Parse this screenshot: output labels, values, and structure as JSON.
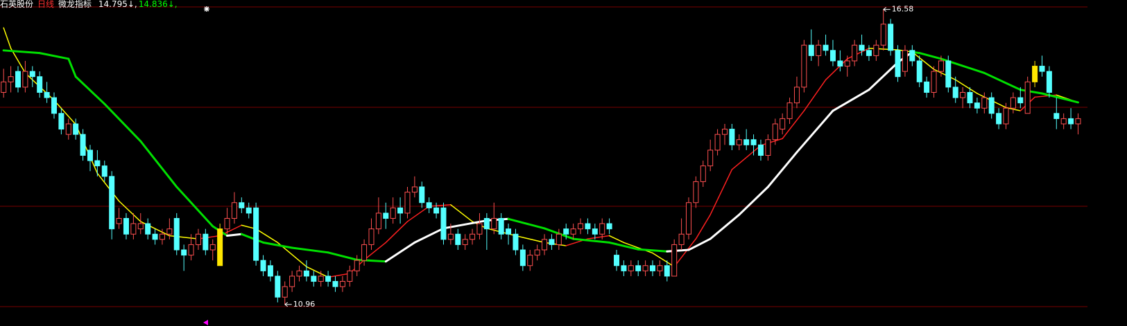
{
  "header": {
    "stock": "石英股份",
    "period": "日线",
    "indicator": "微龙指标",
    "readouts": [
      {
        "text": "14.795↓,",
        "color": "#ffffff"
      },
      {
        "text": "14.836↓,",
        "color": "#00ff00"
      }
    ]
  },
  "chart_data": {
    "type": "candlestick",
    "xlim": [
      -0.5,
      150.3
    ],
    "ylim": [
      10.55,
      16.76
    ],
    "up_color": "#ff5050",
    "down_color": "#54ffff",
    "signal_color": "#ffe600",
    "signal_candles": [
      30,
      143
    ],
    "candles": [
      [
        15.0,
        15.45,
        14.9,
        15.2
      ],
      [
        15.2,
        15.5,
        15.0,
        15.3
      ],
      [
        15.4,
        15.5,
        15.0,
        15.1
      ],
      [
        15.1,
        15.6,
        15.0,
        15.4
      ],
      [
        15.4,
        15.5,
        15.1,
        15.3
      ],
      [
        15.3,
        15.4,
        14.9,
        15.0
      ],
      [
        15.0,
        15.2,
        14.8,
        14.9
      ],
      [
        14.9,
        15.0,
        14.5,
        14.6
      ],
      [
        14.6,
        14.7,
        14.2,
        14.3
      ],
      [
        14.2,
        14.5,
        14.1,
        14.4
      ],
      [
        14.4,
        14.5,
        14.1,
        14.2
      ],
      [
        14.2,
        14.3,
        13.7,
        13.8
      ],
      [
        13.9,
        14.0,
        13.5,
        13.7
      ],
      [
        13.7,
        13.9,
        13.4,
        13.6
      ],
      [
        13.6,
        13.7,
        13.3,
        13.4
      ],
      [
        13.4,
        13.5,
        12.2,
        12.4
      ],
      [
        12.5,
        12.8,
        12.4,
        12.6
      ],
      [
        12.6,
        12.7,
        12.2,
        12.3
      ],
      [
        12.3,
        12.7,
        12.2,
        12.5
      ],
      [
        12.4,
        12.7,
        12.3,
        12.5
      ],
      [
        12.5,
        12.6,
        12.2,
        12.3
      ],
      [
        12.3,
        12.4,
        12.1,
        12.2
      ],
      [
        12.2,
        12.4,
        12.1,
        12.3
      ],
      [
        12.3,
        12.6,
        12.2,
        12.4
      ],
      [
        12.6,
        12.7,
        11.9,
        12.0
      ],
      [
        12.0,
        12.1,
        11.6,
        11.9
      ],
      [
        11.9,
        12.3,
        11.8,
        12.1
      ],
      [
        12.1,
        12.4,
        12.0,
        12.3
      ],
      [
        12.3,
        12.4,
        11.9,
        12.0
      ],
      [
        12.0,
        12.2,
        11.8,
        12.1
      ],
      [
        11.7,
        12.5,
        11.7,
        12.4
      ],
      [
        12.4,
        12.8,
        12.3,
        12.6
      ],
      [
        12.6,
        13.1,
        12.5,
        12.9
      ],
      [
        12.9,
        13.0,
        12.7,
        12.8
      ],
      [
        12.8,
        12.9,
        12.6,
        12.7
      ],
      [
        12.8,
        12.9,
        11.7,
        11.8
      ],
      [
        11.8,
        11.9,
        11.5,
        11.6
      ],
      [
        11.7,
        11.8,
        11.4,
        11.5
      ],
      [
        11.5,
        11.6,
        11.0,
        11.1
      ],
      [
        11.1,
        11.4,
        10.96,
        11.3
      ],
      [
        11.3,
        11.6,
        11.2,
        11.5
      ],
      [
        11.5,
        11.7,
        11.4,
        11.6
      ],
      [
        11.6,
        11.8,
        11.4,
        11.5
      ],
      [
        11.5,
        11.6,
        11.3,
        11.4
      ],
      [
        11.4,
        11.6,
        11.3,
        11.5
      ],
      [
        11.5,
        11.6,
        11.3,
        11.4
      ],
      [
        11.4,
        11.5,
        11.2,
        11.3
      ],
      [
        11.3,
        11.5,
        11.2,
        11.4
      ],
      [
        11.4,
        11.7,
        11.3,
        11.6
      ],
      [
        11.6,
        11.9,
        11.5,
        11.8
      ],
      [
        11.8,
        12.2,
        11.7,
        12.1
      ],
      [
        12.1,
        12.6,
        12.0,
        12.4
      ],
      [
        12.4,
        13.0,
        12.3,
        12.7
      ],
      [
        12.7,
        12.9,
        12.4,
        12.6
      ],
      [
        12.6,
        13.0,
        12.5,
        12.8
      ],
      [
        12.8,
        13.0,
        12.5,
        12.7
      ],
      [
        12.7,
        13.2,
        12.6,
        13.1
      ],
      [
        13.1,
        13.4,
        13.0,
        13.2
      ],
      [
        13.2,
        13.3,
        12.8,
        12.9
      ],
      [
        12.9,
        13.0,
        12.7,
        12.8
      ],
      [
        12.8,
        12.9,
        12.6,
        12.7
      ],
      [
        12.8,
        12.9,
        12.1,
        12.2
      ],
      [
        12.2,
        12.5,
        12.1,
        12.3
      ],
      [
        12.3,
        12.4,
        12.0,
        12.1
      ],
      [
        12.1,
        12.3,
        12.0,
        12.2
      ],
      [
        12.2,
        12.4,
        12.1,
        12.3
      ],
      [
        12.3,
        12.7,
        12.2,
        12.5
      ],
      [
        12.6,
        12.7,
        12.0,
        12.4
      ],
      [
        12.4,
        12.9,
        12.3,
        12.6
      ],
      [
        12.6,
        12.7,
        12.2,
        12.3
      ],
      [
        12.4,
        12.5,
        12.1,
        12.3
      ],
      [
        12.3,
        12.4,
        11.9,
        12.0
      ],
      [
        12.0,
        12.1,
        11.6,
        11.7
      ],
      [
        11.7,
        12.0,
        11.6,
        11.9
      ],
      [
        11.9,
        12.1,
        11.8,
        12.0
      ],
      [
        12.0,
        12.3,
        11.9,
        12.2
      ],
      [
        12.2,
        12.3,
        12.0,
        12.1
      ],
      [
        12.1,
        12.4,
        12.0,
        12.3
      ],
      [
        12.4,
        12.5,
        12.2,
        12.3
      ],
      [
        12.3,
        12.5,
        12.2,
        12.4
      ],
      [
        12.4,
        12.6,
        12.3,
        12.5
      ],
      [
        12.5,
        12.6,
        12.3,
        12.4
      ],
      [
        12.4,
        12.5,
        12.2,
        12.3
      ],
      [
        12.3,
        12.6,
        12.2,
        12.5
      ],
      [
        12.5,
        12.6,
        12.3,
        12.4
      ],
      [
        11.9,
        12.0,
        11.6,
        11.7
      ],
      [
        11.7,
        11.8,
        11.5,
        11.6
      ],
      [
        11.6,
        11.8,
        11.5,
        11.7
      ],
      [
        11.7,
        11.8,
        11.5,
        11.6
      ],
      [
        11.6,
        11.8,
        11.5,
        11.7
      ],
      [
        11.7,
        11.8,
        11.5,
        11.6
      ],
      [
        11.6,
        11.8,
        11.5,
        11.7
      ],
      [
        11.7,
        11.8,
        11.4,
        11.5
      ],
      [
        11.5,
        12.2,
        11.5,
        12.1
      ],
      [
        12.1,
        12.6,
        12.0,
        12.3
      ],
      [
        12.3,
        13.0,
        12.2,
        12.9
      ],
      [
        12.9,
        13.4,
        12.8,
        13.3
      ],
      [
        13.3,
        13.7,
        13.2,
        13.6
      ],
      [
        13.6,
        14.1,
        13.5,
        13.9
      ],
      [
        13.9,
        14.3,
        13.8,
        14.2
      ],
      [
        14.2,
        14.4,
        14.0,
        14.3
      ],
      [
        14.3,
        14.4,
        13.9,
        14.0
      ],
      [
        14.0,
        14.2,
        13.9,
        14.1
      ],
      [
        14.1,
        14.3,
        13.9,
        14.0
      ],
      [
        14.1,
        14.2,
        13.8,
        14.0
      ],
      [
        14.0,
        14.1,
        13.7,
        13.8
      ],
      [
        13.8,
        14.2,
        13.7,
        14.1
      ],
      [
        14.1,
        14.5,
        14.0,
        14.4
      ],
      [
        14.3,
        14.6,
        14.2,
        14.5
      ],
      [
        14.5,
        14.9,
        14.4,
        14.8
      ],
      [
        14.8,
        15.3,
        14.7,
        15.1
      ],
      [
        15.1,
        16.0,
        15.0,
        15.9
      ],
      [
        15.9,
        16.2,
        15.6,
        15.7
      ],
      [
        15.7,
        16.0,
        15.5,
        15.9
      ],
      [
        15.9,
        16.1,
        15.7,
        15.8
      ],
      [
        15.8,
        16.0,
        15.5,
        15.6
      ],
      [
        15.6,
        15.8,
        15.4,
        15.5
      ],
      [
        15.5,
        15.7,
        15.3,
        15.6
      ],
      [
        15.6,
        16.0,
        15.5,
        15.9
      ],
      [
        15.9,
        16.1,
        15.7,
        15.8
      ],
      [
        15.8,
        15.9,
        15.6,
        15.7
      ],
      [
        15.7,
        16.0,
        15.6,
        15.9
      ],
      [
        15.9,
        16.58,
        15.8,
        16.3
      ],
      [
        16.3,
        16.4,
        15.7,
        15.8
      ],
      [
        15.8,
        15.9,
        15.2,
        15.3
      ],
      [
        15.4,
        15.9,
        15.3,
        15.8
      ],
      [
        15.8,
        15.9,
        15.5,
        15.6
      ],
      [
        15.6,
        15.7,
        15.1,
        15.2
      ],
      [
        15.2,
        15.3,
        14.9,
        15.0
      ],
      [
        15.0,
        15.5,
        14.9,
        15.4
      ],
      [
        15.4,
        15.7,
        15.3,
        15.6
      ],
      [
        15.6,
        15.7,
        15.0,
        15.1
      ],
      [
        15.1,
        15.3,
        14.8,
        14.9
      ],
      [
        14.9,
        15.1,
        14.7,
        15.0
      ],
      [
        15.0,
        15.1,
        14.7,
        14.8
      ],
      [
        14.8,
        14.9,
        14.6,
        14.7
      ],
      [
        14.7,
        15.0,
        14.6,
        14.9
      ],
      [
        14.9,
        15.0,
        14.5,
        14.6
      ],
      [
        14.6,
        14.7,
        14.3,
        14.4
      ],
      [
        14.4,
        14.8,
        14.3,
        14.7
      ],
      [
        14.7,
        15.0,
        14.6,
        14.9
      ],
      [
        14.9,
        15.1,
        14.7,
        14.8
      ],
      [
        14.6,
        15.3,
        14.6,
        15.2
      ],
      [
        15.2,
        15.6,
        15.1,
        15.5
      ],
      [
        15.5,
        15.7,
        15.3,
        15.4
      ],
      [
        15.4,
        15.5,
        14.9,
        15.0
      ],
      [
        14.6,
        14.9,
        14.3,
        14.5
      ],
      [
        14.4,
        14.6,
        14.3,
        14.5
      ],
      [
        14.5,
        14.7,
        14.3,
        14.4
      ],
      [
        14.4,
        14.6,
        14.2,
        14.5
      ]
    ],
    "series": [
      {
        "up_color": "#ff2020",
        "down_color": "#ffff00",
        "width": 1.5,
        "x": [
          0,
          1,
          3,
          7,
          10,
          13,
          16,
          19,
          23,
          27,
          30,
          33,
          35,
          38,
          42,
          45,
          48,
          50,
          53,
          56,
          59,
          62,
          65,
          67,
          71,
          75,
          78,
          81,
          84,
          86,
          90,
          93,
          96,
          98,
          101,
          105,
          108,
          111,
          114,
          117,
          120,
          124,
          126,
          129,
          132,
          135,
          139,
          141,
          143,
          146,
          149
        ],
        "values": [
          16.23,
          15.84,
          15.37,
          14.85,
          14.39,
          13.46,
          12.93,
          12.54,
          12.27,
          12.21,
          12.27,
          12.47,
          12.4,
          12.14,
          11.68,
          11.48,
          11.55,
          11.81,
          12.14,
          12.54,
          12.83,
          12.86,
          12.54,
          12.41,
          12.27,
          12.14,
          12.08,
          12.21,
          12.27,
          12.14,
          11.94,
          11.68,
          12.21,
          12.67,
          13.53,
          13.99,
          14.12,
          14.65,
          15.24,
          15.64,
          15.84,
          15.81,
          15.77,
          15.44,
          15.24,
          14.98,
          14.71,
          14.65,
          14.91,
          14.95,
          14.81
        ]
      },
      {
        "up_color": "#ffffff",
        "down_color": "#00e000",
        "width": 3,
        "x": [
          0,
          5,
          9,
          10,
          14,
          19,
          24,
          29,
          31,
          33,
          36,
          40,
          45,
          49,
          53,
          57,
          61,
          67,
          70,
          75,
          79,
          84,
          88,
          92,
          95,
          98,
          102,
          106,
          110,
          115,
          120,
          124,
          126,
          127,
          130,
          136,
          141,
          144,
          149
        ],
        "values": [
          15.8,
          15.75,
          15.64,
          15.3,
          14.78,
          14.07,
          13.2,
          12.45,
          12.27,
          12.3,
          12.14,
          12.04,
          11.95,
          11.81,
          11.78,
          12.14,
          12.41,
          12.56,
          12.59,
          12.41,
          12.21,
          12.14,
          12.01,
          11.97,
          12.0,
          12.21,
          12.67,
          13.2,
          13.86,
          14.65,
          15.05,
          15.57,
          15.77,
          15.75,
          15.64,
          15.37,
          15.05,
          14.98,
          14.81
        ]
      }
    ],
    "annotations": [
      {
        "x": 122,
        "value": 16.58
      },
      {
        "x": 39,
        "value": 10.96
      }
    ]
  }
}
